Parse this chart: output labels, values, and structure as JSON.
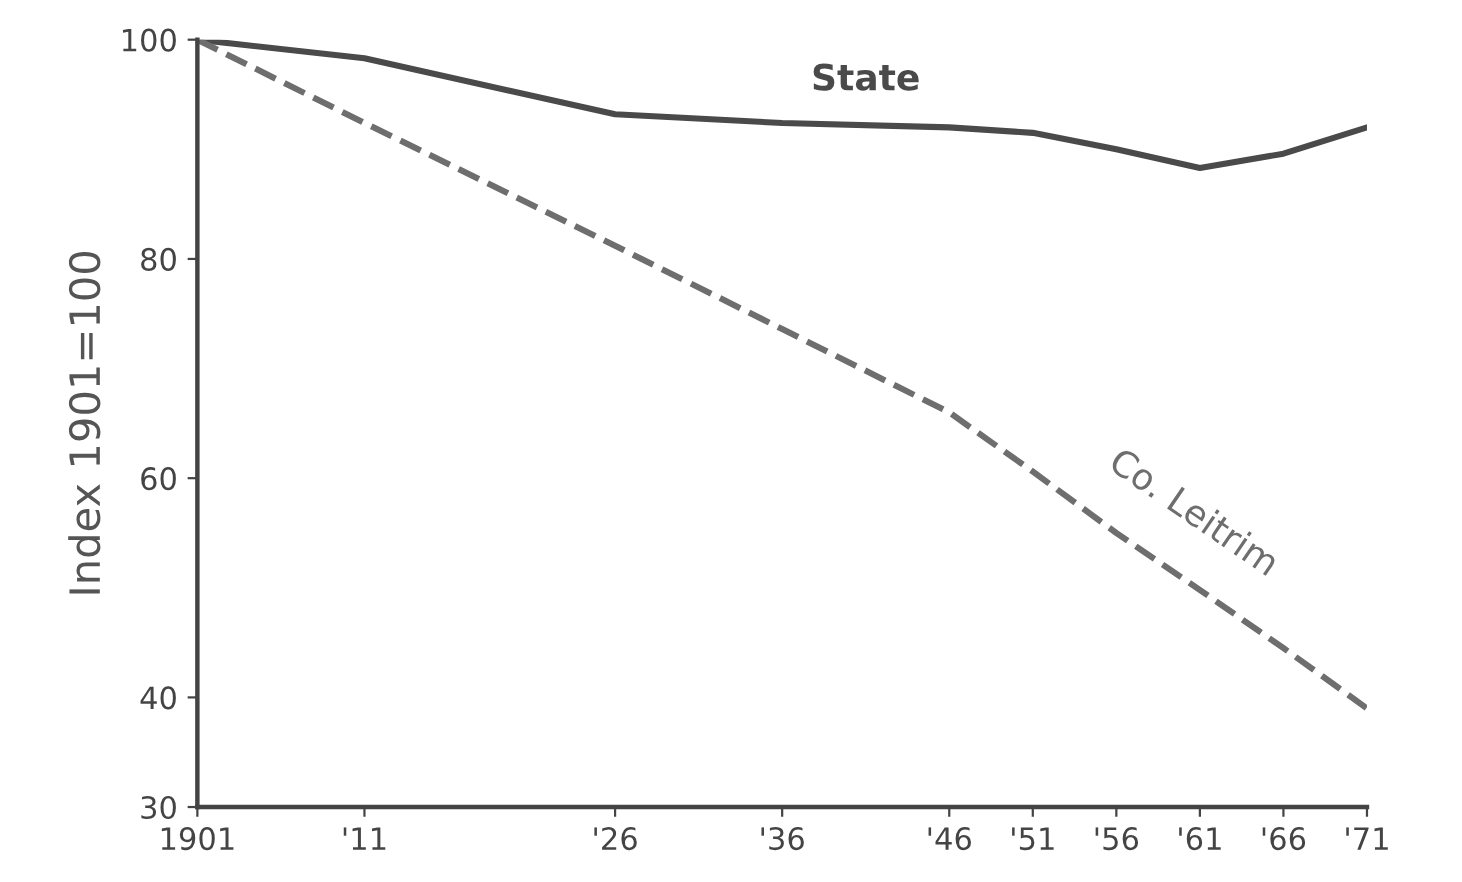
{
  "chart_data": {
    "type": "line",
    "ylabel": "Index 1901=100",
    "x": [
      1901,
      1911,
      1926,
      1936,
      1946,
      1951,
      1956,
      1961,
      1966,
      1971
    ],
    "series": [
      {
        "name": "State",
        "color": "#4a4a4a",
        "line_style": "solid",
        "values": [
          100,
          98.3,
          93.2,
          92.4,
          92,
          91.5,
          90,
          88.3,
          89.6,
          92
        ]
      },
      {
        "name": "Co. Leitrim",
        "color": "#6e6e6e",
        "line_style": "dashed",
        "values": [
          100,
          92.4,
          81.2,
          73.6,
          66,
          60.6,
          55,
          49.8,
          44.5,
          39
        ]
      }
    ],
    "xlim": [
      1901,
      1971
    ],
    "xticks": [
      {
        "value": 1901,
        "label": "1901"
      },
      {
        "value": 1911,
        "label": "'11"
      },
      {
        "value": 1926,
        "label": "'26"
      },
      {
        "value": 1936,
        "label": "'36"
      },
      {
        "value": 1946,
        "label": "'46"
      },
      {
        "value": 1951,
        "label": "'51"
      },
      {
        "value": 1956,
        "label": "'56"
      },
      {
        "value": 1961,
        "label": "'61"
      },
      {
        "value": 1966,
        "label": "'66"
      },
      {
        "value": 1971,
        "label": "'71"
      }
    ],
    "ylim": [
      30,
      100
    ],
    "yticks": [
      30,
      40,
      60,
      80,
      100
    ],
    "grid": false,
    "legend": false,
    "marker": "none"
  }
}
